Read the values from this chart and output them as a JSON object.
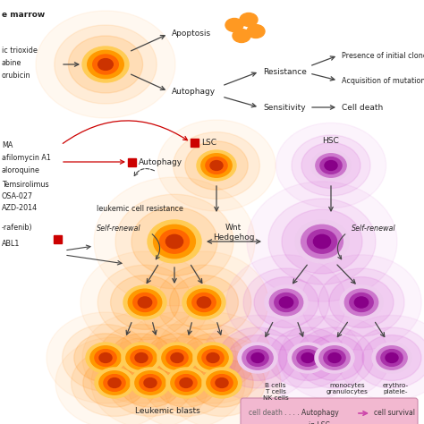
{
  "title": "e marrow",
  "bg_color": "#ffffff",
  "left_drugs_top": [
    "ic trioxide",
    "abine",
    "orubicin"
  ],
  "left_drugs_mid": [
    "MA",
    "afilomycin A1",
    "aloroquine"
  ],
  "left_drugs_mid2": [
    "Temsirolimus",
    "OSA-027",
    "AZD-2014"
  ],
  "left_drugs_bot": [
    "-rafenib)",
    "ABL1"
  ],
  "top_right_labels": [
    "Presence of initial clones",
    "Acquisition of mutation",
    "Cell death"
  ],
  "autophagy_label": "Autophagy",
  "apoptosis_label": "Apoptosis",
  "resistance_label": "Resistance",
  "sensitivity_label": "Sensitivity",
  "lsc_label": "LSC",
  "hsc_label": "HSC",
  "self_renewal_left": "Self-renewal",
  "self_renewal_right": "Self-renewal",
  "wnt_hedgehog": "Wnt\nHedgehog",
  "leukemic_label": "leukemic cell resistance",
  "leukemic_blasts": "Leukemic blasts",
  "b_cells": "B cells\nT cells\nNK cells",
  "monocytes": "monocytes\ngranulocytes",
  "erythro": "erythro-\nplatele-",
  "legend_bg": "#f2b8d0",
  "red_square": "#cc0000",
  "arrow_color": "#444444",
  "red_arrow_color": "#cc0000",
  "text_color": "#222222"
}
